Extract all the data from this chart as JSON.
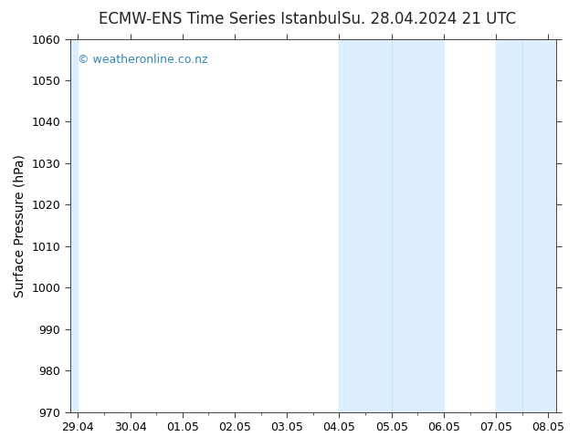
{
  "title_left": "ECMW-ENS Time Series Istanbul",
  "title_right": "Su. 28.04.2024 21 UTC",
  "ylabel": "Surface Pressure (hPa)",
  "ylim": [
    970,
    1060
  ],
  "yticks": [
    970,
    980,
    990,
    1000,
    1010,
    1020,
    1030,
    1040,
    1050,
    1060
  ],
  "xlabel_ticks": [
    "29.04",
    "30.04",
    "01.05",
    "02.05",
    "03.05",
    "04.05",
    "05.05",
    "06.05",
    "07.05",
    "08.05"
  ],
  "xlim": [
    0,
    9
  ],
  "shaded_bands": [
    {
      "x_start": 5.0,
      "x_end": 5.5,
      "color": "#d6eaf8"
    },
    {
      "x_start": 5.5,
      "x_end": 7.0,
      "color": "#ddeeff"
    },
    {
      "x_start": 8.0,
      "x_end": 8.5,
      "color": "#d6eaf8"
    },
    {
      "x_start": 8.5,
      "x_end": 9.0,
      "color": "#ddeeff"
    }
  ],
  "band_color_light": "#dff0fb",
  "band_color_mid": "#c8e3f5",
  "watermark_text": "© weatheronline.co.nz",
  "watermark_color": "#3388bb",
  "background_color": "#ffffff",
  "plot_bg_color": "#ffffff",
  "title_fontsize": 12,
  "axis_label_fontsize": 10,
  "tick_fontsize": 9,
  "watermark_fontsize": 9,
  "border_color": "#555555",
  "tick_color": "#555555"
}
